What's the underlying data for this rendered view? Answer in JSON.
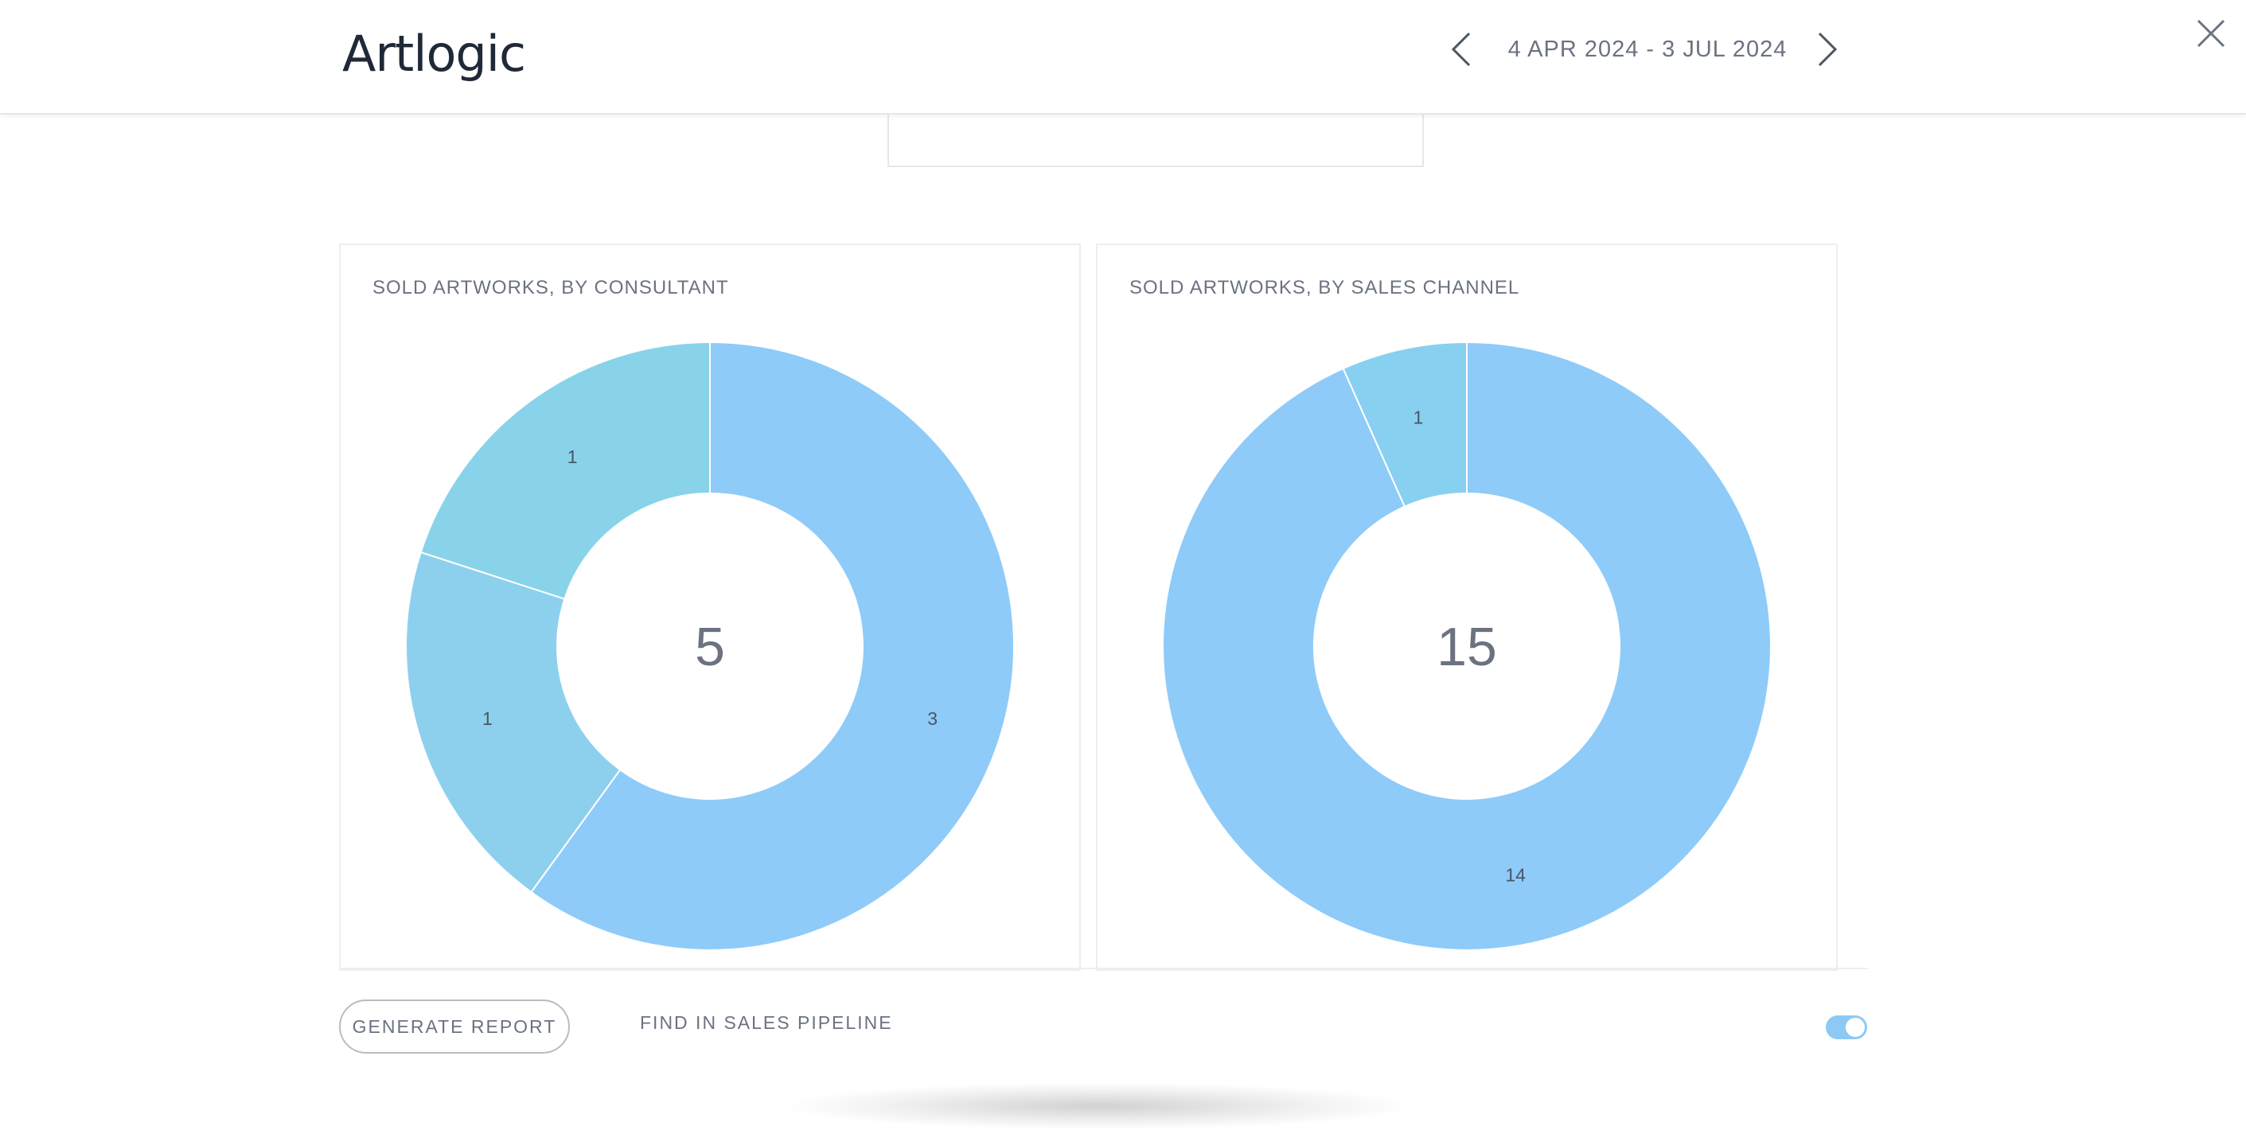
{
  "header": {
    "logo_text": "Artlogic",
    "date_range": "4 APR 2024 - 3 JUL 2024",
    "prev_icon": "chevron-left-icon",
    "next_icon": "chevron-right-icon",
    "close_icon": "close-icon"
  },
  "colors": {
    "slice_primary": "#8ecbf9",
    "slice_secondary": "#8dd0ee",
    "slice_tertiary": "#88d3ea",
    "toggle_on": "#8ec9f5"
  },
  "chart_data": [
    {
      "type": "pie",
      "title": "SOLD ARTWORKS, BY CONSULTANT",
      "center_label": "5",
      "donut": true,
      "values": [
        3,
        1,
        1
      ],
      "labels": [
        "3",
        "1",
        "1"
      ],
      "colors": [
        "#8ecbf9",
        "#8dd0ee",
        "#88d3ea"
      ]
    },
    {
      "type": "pie",
      "title": "SOLD ARTWORKS, BY SALES CHANNEL",
      "center_label": "15",
      "donut": true,
      "values": [
        14,
        1
      ],
      "labels": [
        "14",
        "1"
      ],
      "colors": [
        "#8ecbf9",
        "#88d0f0"
      ]
    }
  ],
  "footer": {
    "generate_report_label": "GENERATE REPORT",
    "find_in_pipeline_label": "FIND IN SALES PIPELINE",
    "toggle_on": true
  }
}
